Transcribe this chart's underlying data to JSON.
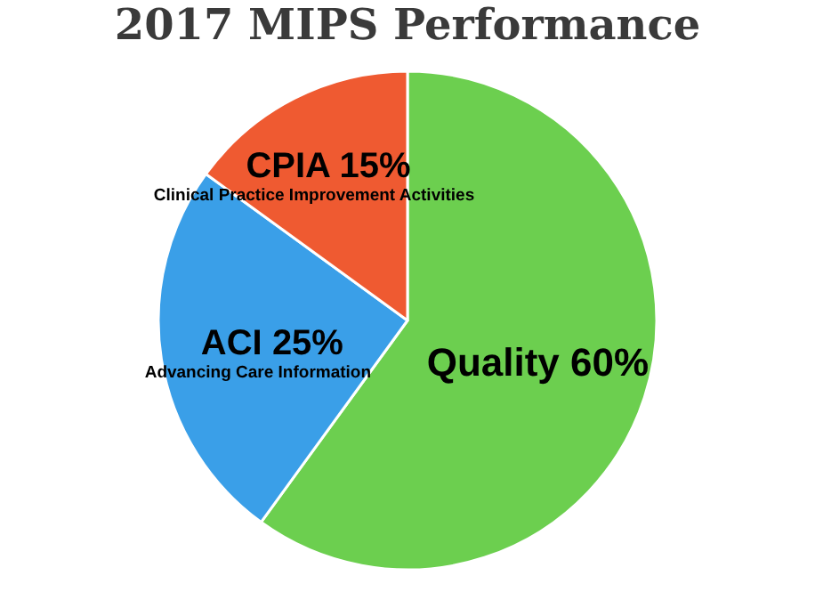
{
  "chart_data": {
    "type": "pie",
    "title": "2017 MIPS Performance",
    "categories": [
      "Quality",
      "ACI",
      "CPIA"
    ],
    "values": [
      60,
      25,
      15
    ],
    "value_labels": [
      "60%",
      "25%",
      "15%"
    ],
    "colors": [
      "#6ccf4f",
      "#3a9fe8",
      "#ef5a31"
    ],
    "annotations": [
      {
        "text": "Advancing Care Information",
        "x": "ACI"
      },
      {
        "text": "Clinical Practice Improvement Activities",
        "x": "CPIA"
      }
    ]
  }
}
